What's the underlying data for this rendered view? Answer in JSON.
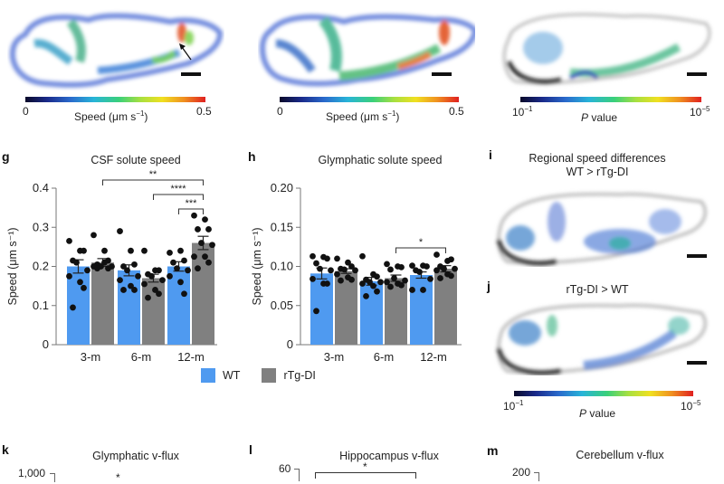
{
  "panels_top": [
    {
      "id": "brain-wt-speed",
      "colorbar": {
        "min_label": "0",
        "max_label": "0.5",
        "label_main": "Speed (μm s",
        "label_sup": "−1",
        "label_end": ")"
      }
    },
    {
      "id": "brain-rtg-speed",
      "colorbar": {
        "min_label": "0",
        "max_label": "0.5",
        "label_main": "Speed (μm s",
        "label_sup": "−1",
        "label_end": ")"
      }
    },
    {
      "id": "brain-pvalue",
      "colorbar": {
        "min_base": "10",
        "min_sup": "−1",
        "max_base": "10",
        "max_sup": "−5",
        "label_italic": "P",
        "label_rest": " value"
      }
    }
  ],
  "legend": {
    "items": [
      {
        "label": "WT",
        "color": "#4f9af0"
      },
      {
        "label": "rTg-DI",
        "color": "#808080"
      }
    ]
  },
  "panel_i": {
    "letter": "i",
    "title_line1": "Regional speed differences",
    "title_line2": "WT > rTg-DI"
  },
  "panel_j": {
    "letter": "j",
    "title": "rTg-DI > WT",
    "colorbar": {
      "min_base": "10",
      "min_sup": "−1",
      "max_base": "10",
      "max_sup": "−5",
      "label_italic": "P",
      "label_rest": " value"
    }
  },
  "panel_k": {
    "letter": "k",
    "title": "Glymphatic v-flux",
    "ytick_top": "1,000",
    "sig": "*"
  },
  "panel_l": {
    "letter": "l",
    "title": "Hippocampus v-flux",
    "ytick_top": "60",
    "sig": "*"
  },
  "panel_m": {
    "letter": "m",
    "title": "Cerebellum v-flux",
    "ytick_top": "200"
  },
  "chart_data": [
    {
      "panel": "g",
      "type": "bar",
      "title": "CSF solute speed",
      "xlabel": "",
      "ylabel": "Speed (μm s⁻¹)",
      "ylim": [
        0,
        0.4
      ],
      "yticks": [
        0,
        0.1,
        0.2,
        0.3,
        0.4
      ],
      "ytick_labels": [
        "0",
        "0.1",
        "0.2",
        "0.3",
        "0.4"
      ],
      "categories": [
        "3-m",
        "6-m",
        "12-m"
      ],
      "series": [
        {
          "name": "WT",
          "color": "#4f9af0",
          "values": [
            0.2,
            0.19,
            0.2
          ],
          "sem": [
            0.017,
            0.014,
            0.012
          ],
          "points": [
            [
              0.265,
              0.24,
              0.24,
              0.215,
              0.21,
              0.19,
              0.175,
              0.16,
              0.145,
              0.095
            ],
            [
              0.29,
              0.24,
              0.205,
              0.2,
              0.19,
              0.175,
              0.165,
              0.15,
              0.14,
              0.14
            ],
            [
              0.235,
              0.24,
              0.215,
              0.21,
              0.195,
              0.19,
              0.175,
              0.16,
              0.13
            ]
          ]
        },
        {
          "name": "rTg-DI",
          "color": "#808080",
          "values": [
            0.21,
            0.17,
            0.26
          ],
          "sem": [
            0.01,
            0.01,
            0.017
          ],
          "points": [
            [
              0.28,
              0.24,
              0.215,
              0.205,
              0.2,
              0.2,
              0.2,
              0.21,
              0.195,
              0.195
            ],
            [
              0.24,
              0.19,
              0.19,
              0.18,
              0.175,
              0.165,
              0.155,
              0.14,
              0.13,
              0.12
            ],
            [
              0.33,
              0.32,
              0.295,
              0.295,
              0.26,
              0.255,
              0.225,
              0.225,
              0.21,
              0.195
            ]
          ]
        }
      ],
      "significance": [
        {
          "from": "3-m rTg-DI",
          "to": "12-m rTg-DI",
          "label": "**"
        },
        {
          "from": "6-m rTg-DI",
          "to": "12-m rTg-DI",
          "label": "****"
        },
        {
          "from": "12-m WT",
          "to": "12-m rTg-DI",
          "label": "***"
        }
      ]
    },
    {
      "panel": "h",
      "type": "bar",
      "title": "Glymphatic solute speed",
      "xlabel": "",
      "ylabel": "Speed (μm s⁻¹)",
      "ylim": [
        0,
        0.2
      ],
      "yticks": [
        0,
        0.05,
        0.1,
        0.15,
        0.2
      ],
      "ytick_labels": [
        "0",
        "0.05",
        "0.10",
        "0.15",
        "0.20"
      ],
      "categories": [
        "3-m",
        "6-m",
        "12-m"
      ],
      "series": [
        {
          "name": "WT",
          "color": "#4f9af0",
          "values": [
            0.091,
            0.081,
            0.089
          ],
          "sem": [
            0.007,
            0.005,
            0.004
          ],
          "points": [
            [
              0.113,
              0.112,
              0.11,
              0.104,
              0.097,
              0.095,
              0.084,
              0.078,
              0.078,
              0.043
            ],
            [
              0.113,
              0.09,
              0.087,
              0.083,
              0.08,
              0.08,
              0.078,
              0.075,
              0.068,
              0.062
            ],
            [
              0.101,
              0.101,
              0.1,
              0.095,
              0.093,
              0.084,
              0.07,
              0.07
            ]
          ]
        },
        {
          "name": "rTg-DI",
          "color": "#808080",
          "values": [
            0.094,
            0.085,
            0.097
          ],
          "sem": [
            0.003,
            0.004,
            0.004
          ],
          "points": [
            [
              0.11,
              0.105,
              0.1,
              0.097,
              0.096,
              0.095,
              0.09,
              0.086,
              0.083,
              0.082
            ],
            [
              0.103,
              0.1,
              0.099,
              0.096,
              0.085,
              0.082,
              0.08,
              0.078,
              0.076,
              0.074
            ],
            [
              0.115,
              0.107,
              0.109,
              0.1,
              0.097,
              0.097,
              0.095,
              0.09,
              0.088,
              0.085
            ]
          ]
        }
      ],
      "significance": [
        {
          "from": "6-m rTg-DI",
          "to": "12-m rTg-DI",
          "label": "*"
        }
      ]
    }
  ]
}
